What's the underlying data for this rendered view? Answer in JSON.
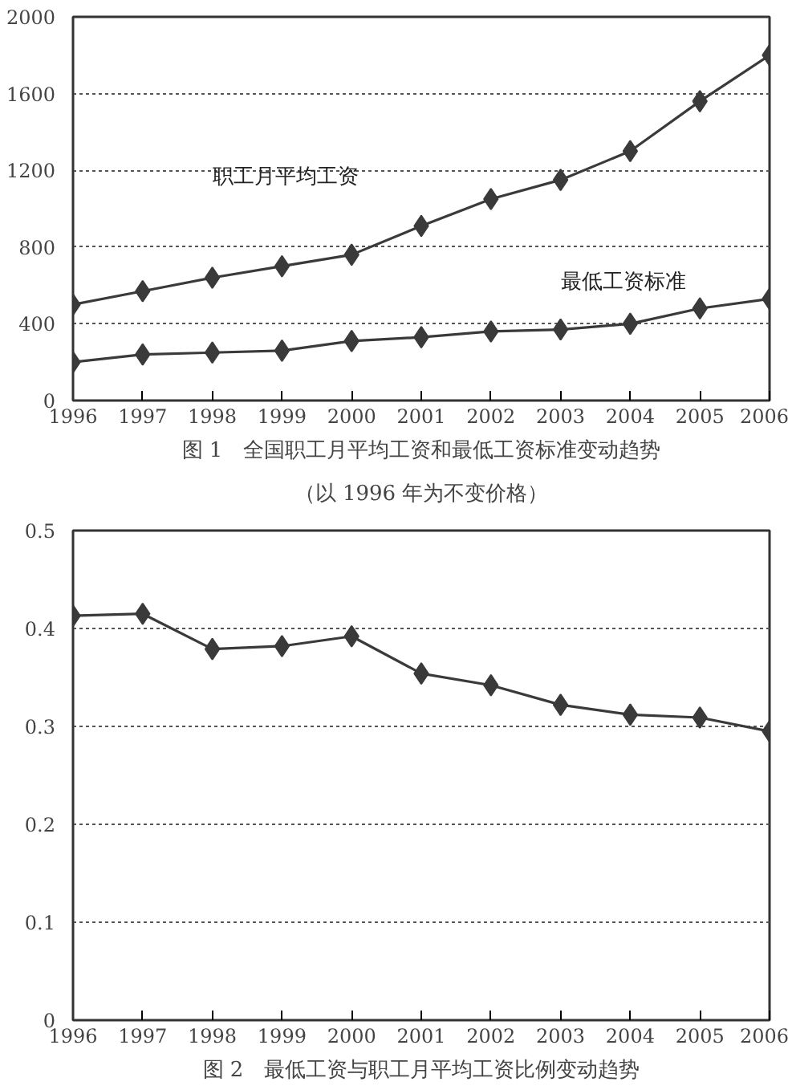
{
  "chart_data": [
    {
      "type": "line",
      "title": "图 1　全国职工月平均工资和最低工资标准变动趋势",
      "subtitle": "（以 1996 年为不变价格）",
      "x": [
        1996,
        1997,
        1998,
        1999,
        2000,
        2001,
        2002,
        2003,
        2004,
        2005,
        2006
      ],
      "series": [
        {
          "name": "职工月平均工资",
          "color": "#3a3a3a",
          "values": [
            500,
            570,
            640,
            700,
            760,
            910,
            1050,
            1150,
            1300,
            1560,
            1800
          ]
        },
        {
          "name": "最低工资标准",
          "color": "#3a3a3a",
          "values": [
            200,
            240,
            250,
            260,
            310,
            330,
            360,
            370,
            400,
            480,
            530
          ]
        }
      ],
      "xlim": [
        1996,
        2006
      ],
      "xticks": [
        1996,
        1997,
        1998,
        1999,
        2000,
        2001,
        2002,
        2003,
        2004,
        2005,
        2006
      ],
      "ylim": [
        0,
        2000
      ],
      "yticks": [
        0,
        400,
        800,
        1200,
        1600,
        2000
      ],
      "grid": "y",
      "marker": "diamond",
      "line_style": "solid"
    },
    {
      "type": "line",
      "title": "图 2　最低工资与职工月平均工资比例变动趋势",
      "x": [
        1996,
        1997,
        1998,
        1999,
        2000,
        2001,
        2002,
        2003,
        2004,
        2005,
        2006
      ],
      "series": [
        {
          "color": "#3a3a3a",
          "values": [
            0.413,
            0.415,
            0.379,
            0.382,
            0.392,
            0.354,
            0.342,
            0.322,
            0.312,
            0.309,
            0.295
          ]
        }
      ],
      "xlim": [
        1996,
        2006
      ],
      "xticks": [
        1996,
        1997,
        1998,
        1999,
        2000,
        2001,
        2002,
        2003,
        2004,
        2005,
        2006
      ],
      "ylim": [
        0,
        0.5
      ],
      "yticks": [
        0,
        0.1,
        0.2,
        0.3,
        0.4,
        0.5
      ],
      "grid": "y",
      "marker": "diamond",
      "line_style": "solid"
    }
  ]
}
